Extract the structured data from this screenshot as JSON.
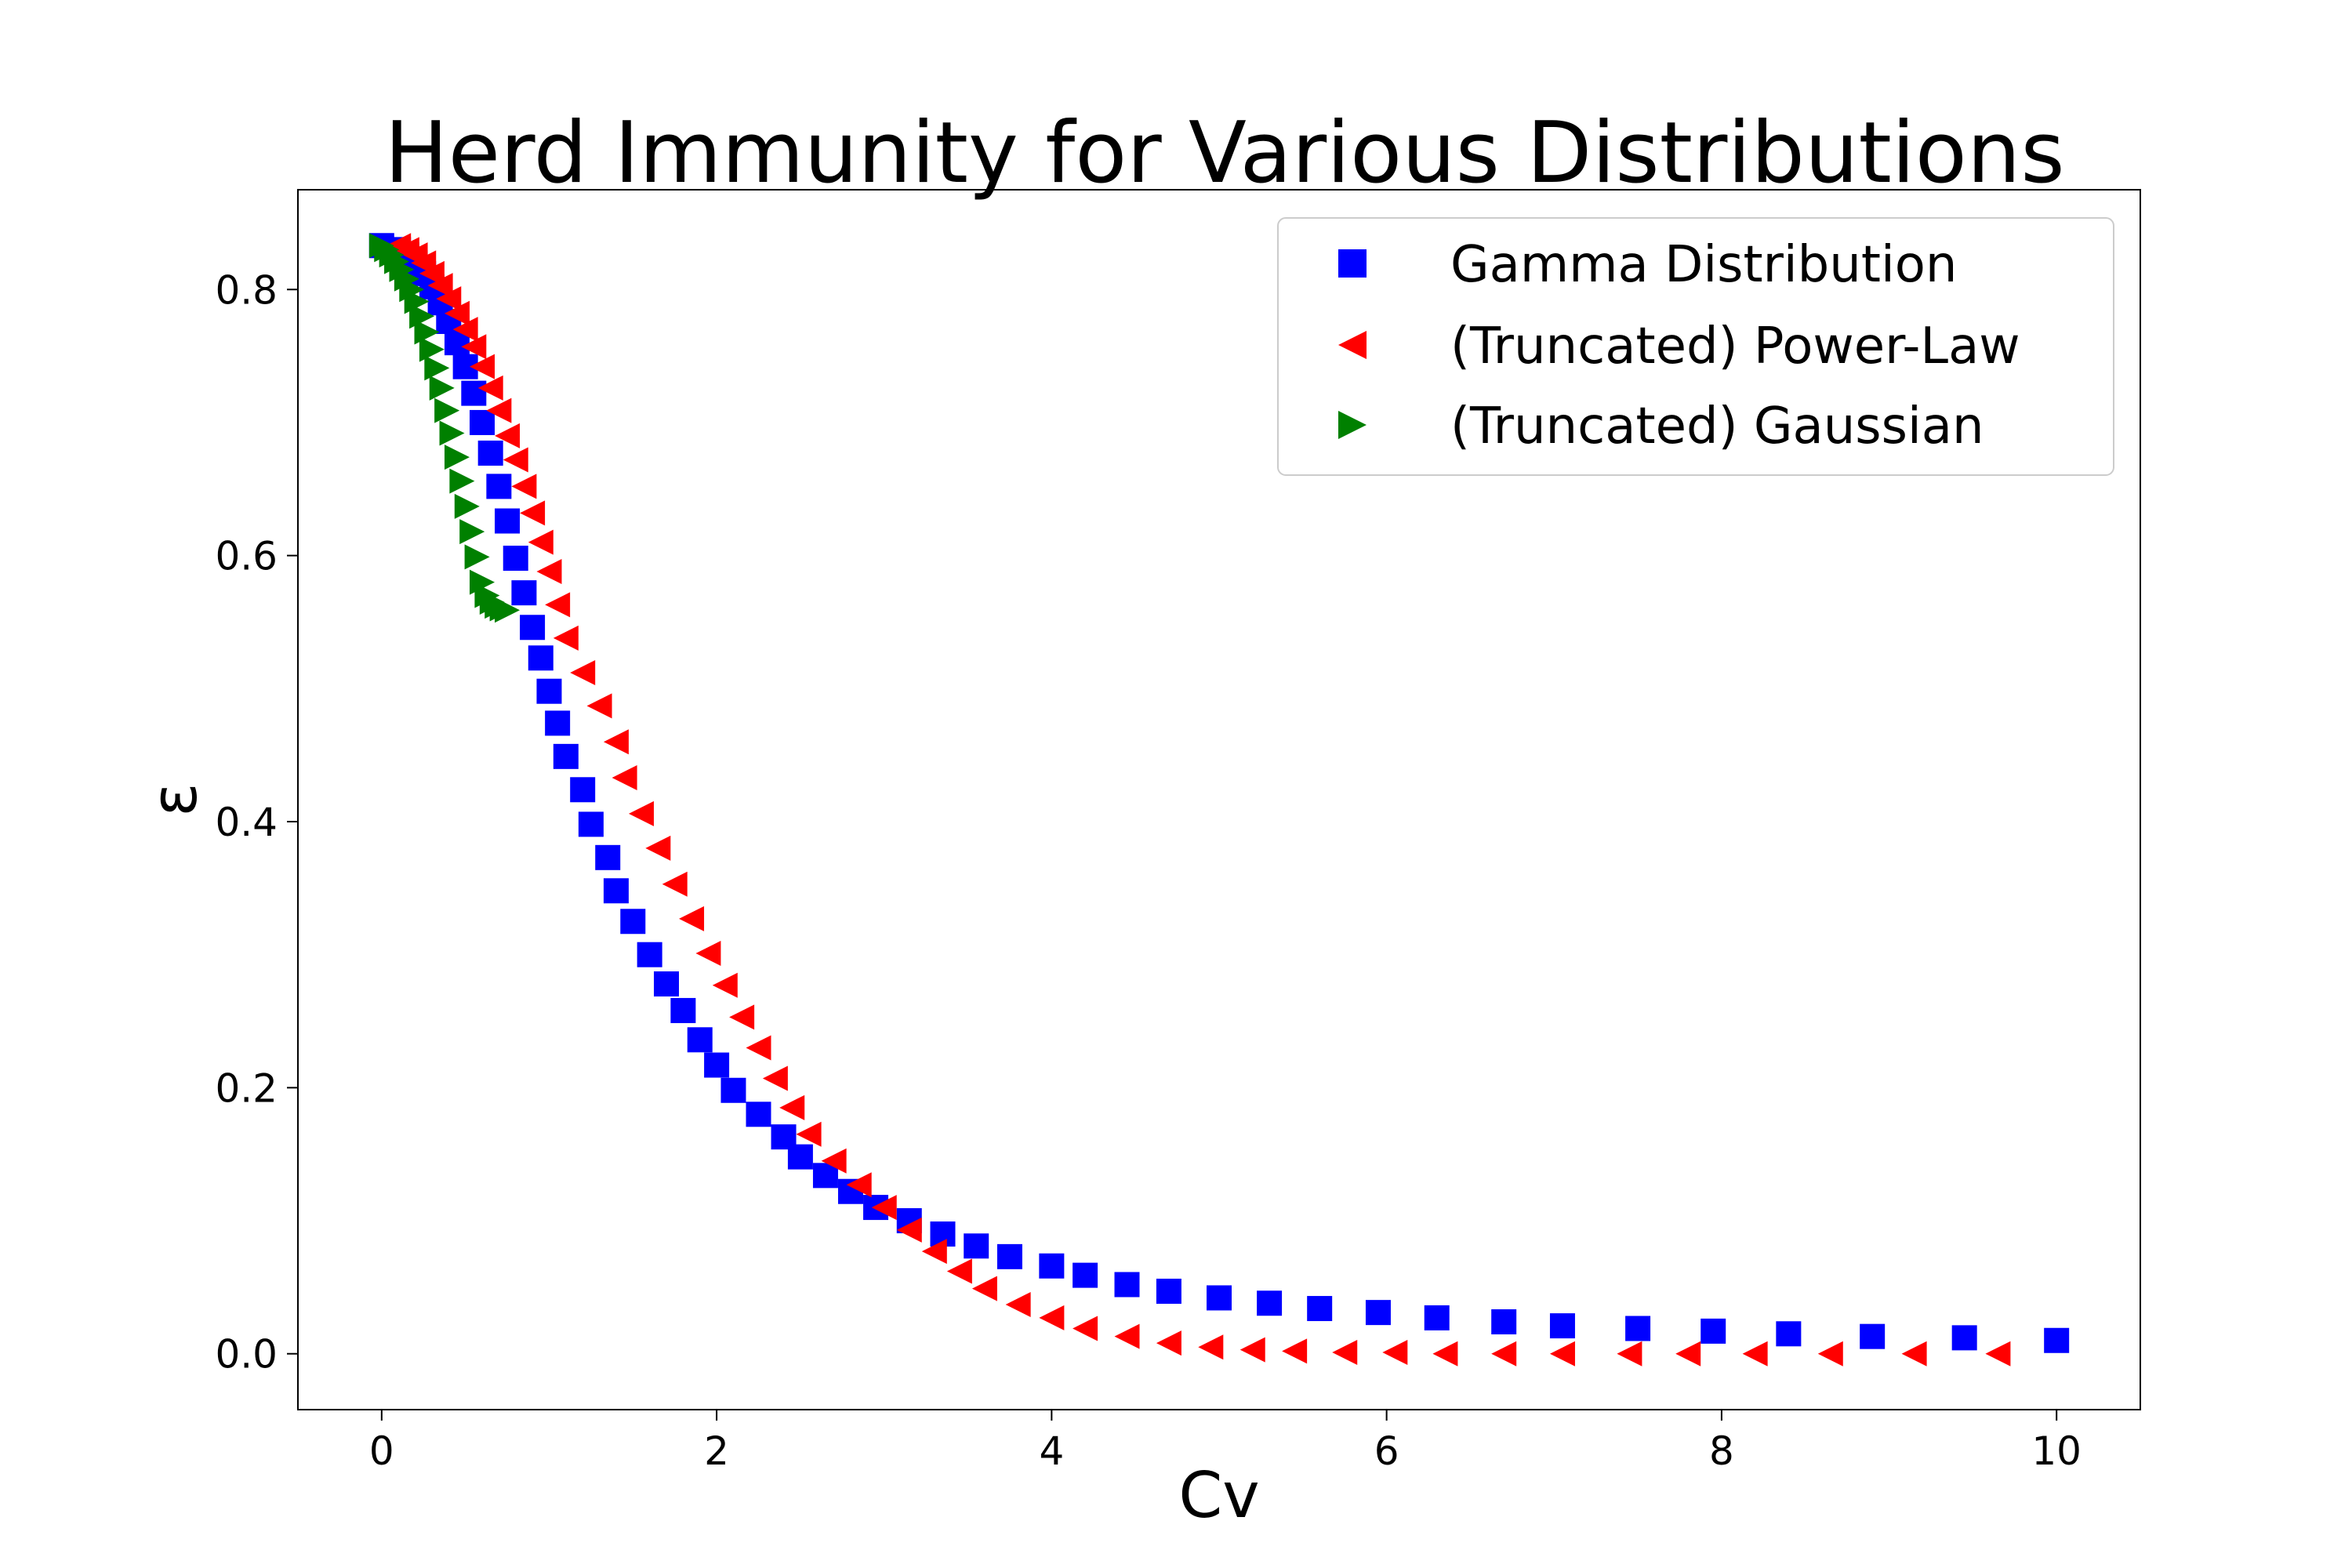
{
  "chart_data": {
    "type": "scatter",
    "title": "Herd Immunity for Various Distributions",
    "xlabel": "Cv",
    "ylabel": "ε",
    "xlim": [
      -0.5,
      10.5
    ],
    "ylim": [
      -0.042,
      0.875
    ],
    "xticks": [
      0,
      2,
      4,
      6,
      8,
      10
    ],
    "xtick_labels": [
      "0",
      "2",
      "4",
      "6",
      "8",
      "10"
    ],
    "yticks": [
      0.0,
      0.2,
      0.4,
      0.6,
      0.8
    ],
    "ytick_labels": [
      "0.0",
      "0.2",
      "0.4",
      "0.6",
      "0.8"
    ],
    "grid": false,
    "legend_position": "top-right",
    "series": [
      {
        "name": "Gamma Distribution",
        "marker": "square",
        "color": "#0000ff",
        "x": [
          0.0,
          0.1,
          0.15,
          0.2,
          0.25,
          0.3,
          0.35,
          0.4,
          0.45,
          0.5,
          0.55,
          0.6,
          0.65,
          0.7,
          0.75,
          0.8,
          0.85,
          0.9,
          0.95,
          1.0,
          1.05,
          1.1,
          1.2,
          1.25,
          1.35,
          1.4,
          1.5,
          1.6,
          1.7,
          1.8,
          1.9,
          2.0,
          2.1,
          2.25,
          2.4,
          2.5,
          2.65,
          2.8,
          2.95,
          3.15,
          3.35,
          3.55,
          3.75,
          4.0,
          4.2,
          4.45,
          4.7,
          5.0,
          5.3,
          5.6,
          5.95,
          6.3,
          6.7,
          7.05,
          7.5,
          7.95,
          8.4,
          8.9,
          9.45,
          10.0
        ],
        "y": [
          0.833,
          0.83,
          0.826,
          0.82,
          0.812,
          0.802,
          0.79,
          0.776,
          0.76,
          0.742,
          0.722,
          0.7,
          0.677,
          0.652,
          0.626,
          0.598,
          0.572,
          0.546,
          0.523,
          0.498,
          0.474,
          0.449,
          0.424,
          0.398,
          0.373,
          0.348,
          0.325,
          0.3,
          0.278,
          0.258,
          0.236,
          0.217,
          0.198,
          0.18,
          0.163,
          0.148,
          0.134,
          0.122,
          0.11,
          0.1,
          0.09,
          0.081,
          0.073,
          0.066,
          0.059,
          0.052,
          0.047,
          0.042,
          0.038,
          0.034,
          0.031,
          0.027,
          0.024,
          0.021,
          0.019,
          0.017,
          0.015,
          0.013,
          0.012,
          0.01
        ]
      },
      {
        "name": "(Truncated) Power-Law",
        "marker": "triangle-left",
        "color": "#ff0000",
        "x": [
          0.1,
          0.15,
          0.2,
          0.25,
          0.3,
          0.35,
          0.4,
          0.45,
          0.5,
          0.55,
          0.6,
          0.65,
          0.7,
          0.75,
          0.8,
          0.85,
          0.9,
          0.95,
          1.0,
          1.05,
          1.1,
          1.2,
          1.3,
          1.4,
          1.45,
          1.55,
          1.65,
          1.75,
          1.85,
          1.95,
          2.05,
          2.15,
          2.25,
          2.35,
          2.45,
          2.55,
          2.7,
          2.85,
          3.0,
          3.15,
          3.3,
          3.45,
          3.6,
          3.8,
          4.0,
          4.2,
          4.45,
          4.7,
          4.95,
          5.2,
          5.45,
          5.75,
          6.05,
          6.35,
          6.7,
          7.05,
          7.45,
          7.8,
          8.2,
          8.65,
          9.15,
          9.65
        ],
        "y": [
          0.833,
          0.83,
          0.826,
          0.82,
          0.812,
          0.803,
          0.793,
          0.782,
          0.77,
          0.757,
          0.742,
          0.726,
          0.709,
          0.69,
          0.672,
          0.652,
          0.632,
          0.61,
          0.588,
          0.563,
          0.538,
          0.512,
          0.487,
          0.46,
          0.433,
          0.406,
          0.38,
          0.353,
          0.327,
          0.301,
          0.277,
          0.253,
          0.23,
          0.207,
          0.185,
          0.165,
          0.145,
          0.127,
          0.11,
          0.093,
          0.077,
          0.062,
          0.049,
          0.037,
          0.027,
          0.019,
          0.013,
          0.008,
          0.005,
          0.003,
          0.002,
          0.001,
          0.001,
          0.0,
          0.0,
          0.0,
          0.0,
          0.0,
          0.0,
          0.0,
          0.0,
          0.0
        ]
      },
      {
        "name": "(Truncated) Gaussian",
        "marker": "triangle-right",
        "color": "#008000",
        "x": [
          0.0,
          0.03,
          0.06,
          0.09,
          0.12,
          0.15,
          0.18,
          0.21,
          0.24,
          0.27,
          0.3,
          0.33,
          0.36,
          0.39,
          0.42,
          0.45,
          0.48,
          0.51,
          0.54,
          0.57,
          0.6,
          0.63,
          0.66,
          0.69,
          0.72,
          0.75
        ],
        "y": [
          0.833,
          0.83,
          0.826,
          0.821,
          0.815,
          0.808,
          0.8,
          0.791,
          0.78,
          0.768,
          0.755,
          0.741,
          0.726,
          0.709,
          0.692,
          0.674,
          0.656,
          0.637,
          0.618,
          0.599,
          0.58,
          0.57,
          0.565,
          0.562,
          0.56,
          0.559
        ]
      }
    ]
  }
}
